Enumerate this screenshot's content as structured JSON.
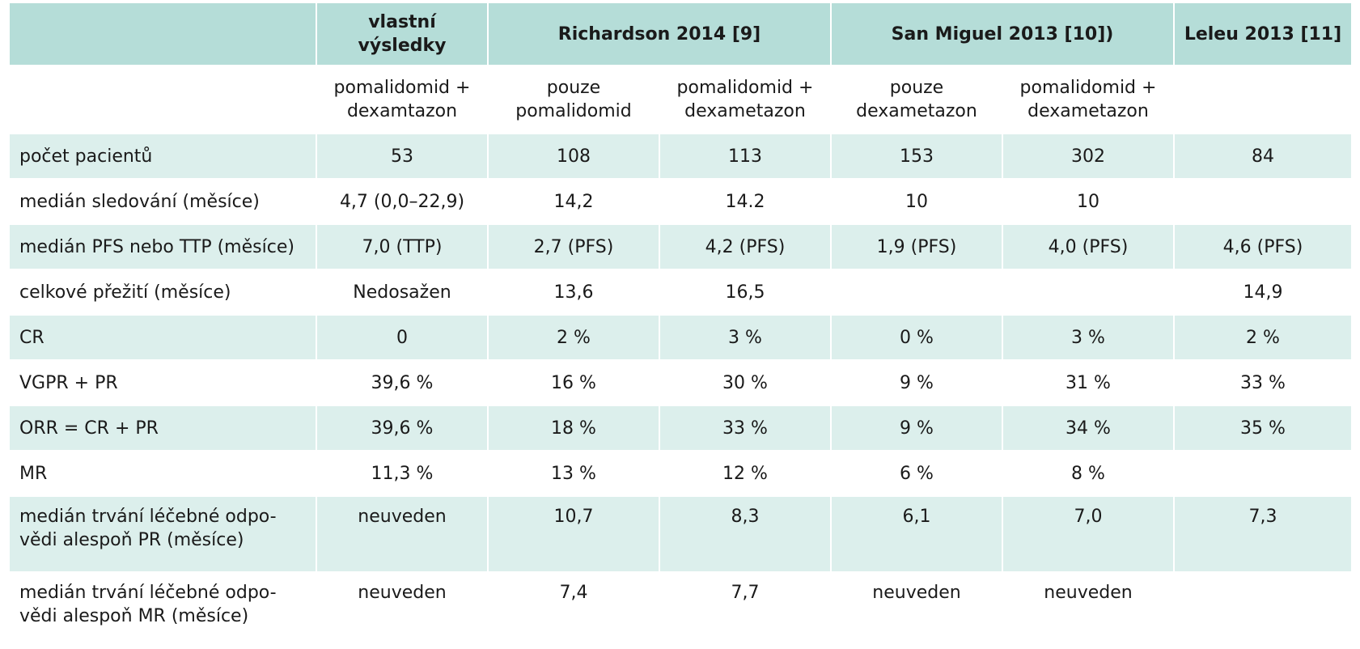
{
  "header": {
    "corner": "",
    "groups": [
      "vlastní výsledky",
      "Richardson 2014 [9]",
      "San Miguel 2013 [10])",
      "Leleu 2013 [11]"
    ]
  },
  "subheader": [
    "",
    "pomalidomid + dexamtazon",
    "pouze pomalidomid",
    "pomalidomid + dexametazon",
    "pouze dexametazon",
    "pomalidomid + dexametazon",
    ""
  ],
  "rows": [
    {
      "label": "počet pacientů",
      "cells": [
        "53",
        "108",
        "113",
        "153",
        "302",
        "84"
      ]
    },
    {
      "label": "medián sledování (měsíce)",
      "cells": [
        "4,7 (0,0–22,9)",
        "14,2",
        "14.2",
        "10",
        "10",
        ""
      ]
    },
    {
      "label": "medián PFS nebo TTP (měsíce)",
      "cells": [
        "7,0 (TTP)",
        "2,7 (PFS)",
        "4,2 (PFS)",
        "1,9 (PFS)",
        "4,0 (PFS)",
        "4,6 (PFS)"
      ]
    },
    {
      "label": "celkové přežití (měsíce)",
      "cells": [
        "Nedosažen",
        "13,6",
        "16,5",
        "",
        "",
        "14,9"
      ]
    },
    {
      "label": "CR",
      "cells": [
        "0",
        "2 %",
        "3 %",
        "0 %",
        "3 %",
        "2 %"
      ]
    },
    {
      "label": "VGPR + PR",
      "cells": [
        "39,6 %",
        "16 %",
        "30 %",
        "9 %",
        "31 %",
        "33 %"
      ]
    },
    {
      "label": "ORR = CR + PR",
      "cells": [
        "39,6 %",
        "18 %",
        "33 %",
        "9 %",
        "34 %",
        "35 %"
      ]
    },
    {
      "label": "MR",
      "cells": [
        "11,3 %",
        "13 %",
        "12 %",
        "6 %",
        "8 %",
        ""
      ]
    },
    {
      "label": "medián trvání léčebné odpo-vědi alespoň PR (měsíce)",
      "label_lines": [
        "medián trvání léčebné odpo-",
        "vědi alespoň PR (měsíce)"
      ],
      "cells": [
        "neuveden",
        "10,7",
        "8,3",
        "6,1",
        "7,0",
        "7,3"
      ]
    },
    {
      "label": "medián trvání léčebné odpo-vědi alespoň MR (měsíce)",
      "label_lines": [
        "medián trvání léčebné odpo-",
        "vědi alespoň MR (měsíce)"
      ],
      "cells": [
        "neuveden",
        "7,4",
        "7,7",
        "neuveden",
        "neuveden",
        ""
      ]
    }
  ],
  "colors": {
    "header_bg": "#b5ddd8",
    "stripe_bg": "#dcefec",
    "plain_bg": "#ffffff"
  }
}
